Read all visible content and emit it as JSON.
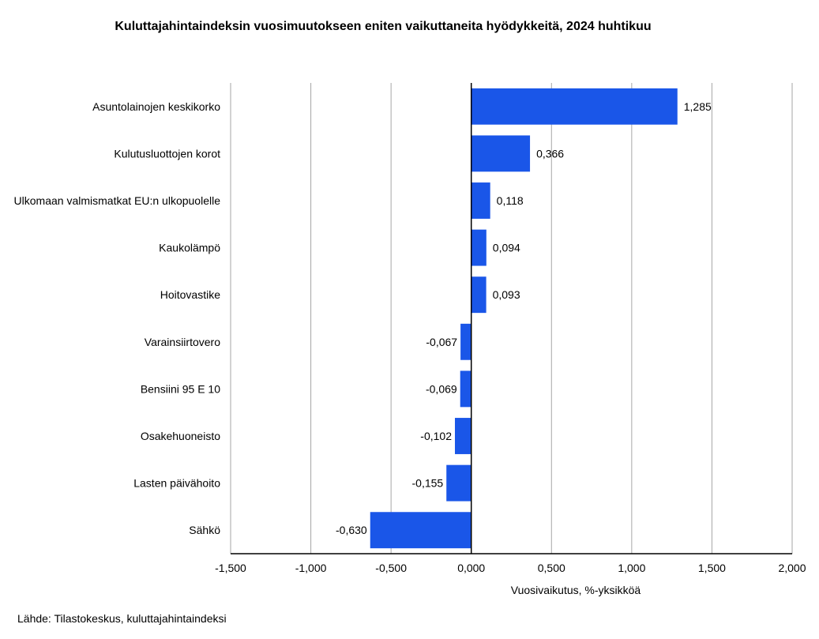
{
  "chart_data": {
    "type": "bar",
    "orientation": "horizontal",
    "title": "Kuluttajahintaindeksin vuosimuutokseen eniten vaikuttaneita hyödykkeitä, 2024 huhtikuu",
    "xlabel": "Vuosivaikutus, %-yksikköä",
    "ylabel": "",
    "categories": [
      "Asuntolainojen keskikorko",
      "Kulutusluottojen korot",
      "Ulkomaan valmismatkat EU:n ulkopuolelle",
      "Kaukolämpö",
      "Hoitovastike",
      "Varainsiirtovero",
      "Bensiini 95 E 10",
      "Osakehuoneisto",
      "Lasten päivähoito",
      "Sähkö"
    ],
    "values": [
      1.285,
      0.366,
      0.118,
      0.094,
      0.093,
      -0.067,
      -0.069,
      -0.102,
      -0.155,
      -0.63
    ],
    "value_labels": [
      "1,285",
      "0,366",
      "0,118",
      "0,094",
      "0,093",
      "-0,067",
      "-0,069",
      "-0,102",
      "-0,155",
      "-0,630"
    ],
    "xlim": [
      -1.5,
      2.0
    ],
    "xticks": [
      -1.5,
      -1.0,
      -0.5,
      0.0,
      0.5,
      1.0,
      1.5,
      2.0
    ],
    "xtick_labels": [
      "-1,500",
      "-1,000",
      "-0,500",
      "0,000",
      "0,500",
      "1,000",
      "1,500",
      "2,000"
    ],
    "grid": true,
    "legend": "none",
    "bar_color": "#1a56e8",
    "grid_color": "#a6a6a6"
  },
  "source": "Lähde: Tilastokeskus, kuluttajahintaindeksi"
}
